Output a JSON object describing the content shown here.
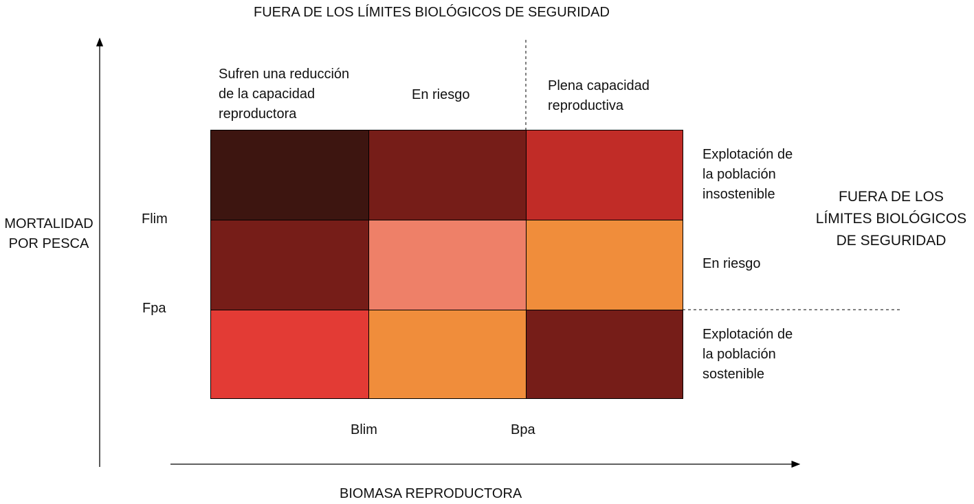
{
  "titles": {
    "top": "FUERA DE LOS LÍMITES BIOLÓGICOS DE SEGURIDAD",
    "right": "FUERA DE LOS\nLÍMITES BIOLÓGICOS\nDE SEGURIDAD"
  },
  "axes": {
    "y_label": "MORTALIDAD\nPOR PESCA",
    "x_label": "BIOMASA REPRODUCTORA"
  },
  "thresholds": {
    "f_lim": "Flim",
    "f_pa": "Fpa",
    "b_lim": "Blim",
    "b_pa": "Bpa"
  },
  "column_headers": [
    "Sufren una reducción\nde la capacidad\nreproductora",
    "En riesgo",
    "Plena capacidad\nreproductiva"
  ],
  "row_labels": [
    "Explotación de\nla población\ninsostenible",
    "En riesgo",
    "Explotación de\nla población\nsostenible"
  ],
  "colors": {
    "darkest_brown": "#3d1510",
    "dark_red": "#761d18",
    "red": "#c12c27",
    "salmon": "#ee8068",
    "orange": "#f08d3b",
    "bright_red": "#e33b35"
  },
  "grid": [
    [
      "#3d1510",
      "#761d18",
      "#c12c27"
    ],
    [
      "#761d18",
      "#ee8068",
      "#f08d3b"
    ],
    [
      "#e33b35",
      "#f08d3b",
      "#761d18"
    ]
  ]
}
